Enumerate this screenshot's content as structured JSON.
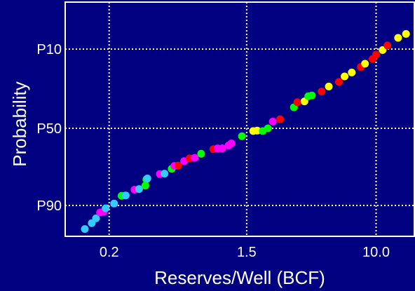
{
  "chart_data": {
    "type": "scatter",
    "title": "",
    "xlabel": "Reserves/Well (BCF)",
    "ylabel": "Probability",
    "x_scale": "log",
    "xlim": [
      0.105,
      17.5
    ],
    "x_ticks": [
      {
        "value": 0.2,
        "label": "0.2"
      },
      {
        "value": 1.5,
        "label": "1.5"
      },
      {
        "value": 10.0,
        "label": "10.0"
      }
    ],
    "y_scale": "probability",
    "y_ticks": [
      {
        "value": 0.1,
        "label": "P10"
      },
      {
        "value": 0.5,
        "label": "P50"
      },
      {
        "value": 0.9,
        "label": "P90"
      }
    ],
    "grid": true,
    "grid_style": "dotted",
    "colors": {
      "background": "#000080",
      "grid": "#ffffff",
      "yellow": "#ffff00",
      "red": "#ff0000",
      "green": "#00ff00",
      "magenta": "#ff00ff",
      "cyan": "#33ccff"
    },
    "points": [
      {
        "x": 0.14,
        "p": 0.984,
        "color": "cyan"
      },
      {
        "x": 0.155,
        "p": 0.963,
        "color": "cyan"
      },
      {
        "x": 0.165,
        "p": 0.946,
        "color": "cyan"
      },
      {
        "x": 0.175,
        "p": 0.925,
        "color": "magenta"
      },
      {
        "x": 0.185,
        "p": 0.922,
        "color": "magenta"
      },
      {
        "x": 0.19,
        "p": 0.91,
        "color": "cyan"
      },
      {
        "x": 0.215,
        "p": 0.89,
        "color": "cyan"
      },
      {
        "x": 0.24,
        "p": 0.85,
        "color": "green"
      },
      {
        "x": 0.255,
        "p": 0.848,
        "color": "cyan"
      },
      {
        "x": 0.29,
        "p": 0.818,
        "color": "magenta"
      },
      {
        "x": 0.31,
        "p": 0.815,
        "color": "cyan"
      },
      {
        "x": 0.34,
        "p": 0.797,
        "color": "green"
      },
      {
        "x": 0.345,
        "p": 0.765,
        "color": "green"
      },
      {
        "x": 0.35,
        "p": 0.76,
        "color": "cyan"
      },
      {
        "x": 0.42,
        "p": 0.737,
        "color": "magenta"
      },
      {
        "x": 0.45,
        "p": 0.735,
        "color": "cyan"
      },
      {
        "x": 0.5,
        "p": 0.71,
        "color": "green"
      },
      {
        "x": 0.52,
        "p": 0.695,
        "color": "magenta"
      },
      {
        "x": 0.55,
        "p": 0.693,
        "color": "red"
      },
      {
        "x": 0.6,
        "p": 0.67,
        "color": "magenta"
      },
      {
        "x": 0.65,
        "p": 0.656,
        "color": "red"
      },
      {
        "x": 0.7,
        "p": 0.653,
        "color": "magenta"
      },
      {
        "x": 0.77,
        "p": 0.632,
        "color": "green"
      },
      {
        "x": 0.92,
        "p": 0.608,
        "color": "red"
      },
      {
        "x": 0.98,
        "p": 0.604,
        "color": "magenta"
      },
      {
        "x": 1.05,
        "p": 0.604,
        "color": "magenta"
      },
      {
        "x": 1.15,
        "p": 0.589,
        "color": "magenta"
      },
      {
        "x": 1.2,
        "p": 0.578,
        "color": "magenta"
      },
      {
        "x": 1.4,
        "p": 0.541,
        "color": "green"
      },
      {
        "x": 1.65,
        "p": 0.514,
        "color": "yellow"
      },
      {
        "x": 1.75,
        "p": 0.512,
        "color": "yellow"
      },
      {
        "x": 1.9,
        "p": 0.514,
        "color": "green"
      },
      {
        "x": 2.05,
        "p": 0.5,
        "color": "green"
      },
      {
        "x": 2.2,
        "p": 0.466,
        "color": "magenta"
      },
      {
        "x": 2.45,
        "p": 0.454,
        "color": "red"
      },
      {
        "x": 3.0,
        "p": 0.394,
        "color": "green"
      },
      {
        "x": 3.15,
        "p": 0.368,
        "color": "red"
      },
      {
        "x": 3.5,
        "p": 0.364,
        "color": "yellow"
      },
      {
        "x": 3.7,
        "p": 0.338,
        "color": "green"
      },
      {
        "x": 3.9,
        "p": 0.334,
        "color": "green"
      },
      {
        "x": 4.5,
        "p": 0.314,
        "color": "red"
      },
      {
        "x": 5.0,
        "p": 0.289,
        "color": "yellow"
      },
      {
        "x": 5.8,
        "p": 0.266,
        "color": "red"
      },
      {
        "x": 6.3,
        "p": 0.238,
        "color": "yellow"
      },
      {
        "x": 7.0,
        "p": 0.218,
        "color": "yellow"
      },
      {
        "x": 8.0,
        "p": 0.19,
        "color": "red"
      },
      {
        "x": 8.5,
        "p": 0.174,
        "color": "yellow"
      },
      {
        "x": 9.5,
        "p": 0.15,
        "color": "red"
      },
      {
        "x": 10.0,
        "p": 0.128,
        "color": "red"
      },
      {
        "x": 11.0,
        "p": 0.105,
        "color": "yellow"
      },
      {
        "x": 11.8,
        "p": 0.087,
        "color": "red"
      },
      {
        "x": 13.8,
        "p": 0.06,
        "color": "yellow"
      },
      {
        "x": 15.5,
        "p": 0.046,
        "color": "yellow"
      }
    ]
  }
}
